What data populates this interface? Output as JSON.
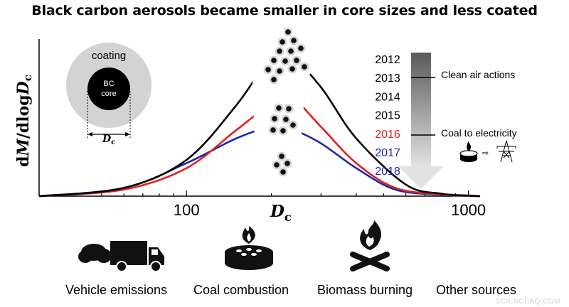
{
  "title": "Black carbon aerosols became smaller in core sizes and less coated",
  "chart_data": {
    "type": "line",
    "xlabel": "D",
    "xlabel_sub": "c",
    "ylabel_prefix": "d",
    "ylabel_italic": "M",
    "ylabel_mid": "/dlog",
    "ylabel_var": "D",
    "ylabel_sub": "c",
    "x_scale": "log",
    "xlim": [
      30,
      1100
    ],
    "ylim": [
      0,
      1
    ],
    "xticks": [
      100,
      1000
    ],
    "xtick_labels": [
      "100",
      "1000"
    ],
    "series": [
      {
        "name": "2012",
        "color": "#000000",
        "x": [
          30,
          60,
          100,
          150,
          195,
          230,
          300,
          400,
          600,
          800,
          1000,
          1100
        ],
        "y": [
          0.0,
          0.05,
          0.22,
          0.55,
          0.82,
          0.86,
          0.66,
          0.35,
          0.07,
          0.015,
          0.004,
          0.0
        ]
      },
      {
        "name": "2016",
        "color": "#e02020",
        "x": [
          30,
          60,
          100,
          150,
          200,
          238,
          300,
          400,
          550,
          800,
          1100
        ],
        "y": [
          0.0,
          0.04,
          0.17,
          0.4,
          0.56,
          0.59,
          0.42,
          0.2,
          0.05,
          0.01,
          0.0
        ]
      },
      {
        "name": "2017-2018",
        "color": "#1c23b5",
        "x": [
          30,
          60,
          100,
          150,
          200,
          240,
          300,
          400,
          550,
          800,
          1100
        ],
        "y": [
          0.0,
          0.05,
          0.2,
          0.35,
          0.42,
          0.4,
          0.32,
          0.17,
          0.04,
          0.008,
          0.0
        ]
      }
    ],
    "years": [
      {
        "label": "2012",
        "color": "#000000"
      },
      {
        "label": "2013",
        "color": "#000000"
      },
      {
        "label": "2014",
        "color": "#000000"
      },
      {
        "label": "2015",
        "color": "#000000"
      },
      {
        "label": "2016",
        "color": "#e02020"
      },
      {
        "label": "2017",
        "color": "#1c23b5"
      },
      {
        "label": "2018",
        "color": "#1c23b5"
      }
    ],
    "annotations": [
      "Clean air actions",
      "Coal to electricity"
    ],
    "inset": {
      "coating_label": "coating",
      "core_line1": "BC",
      "core_line2": "core",
      "dim_label": "D",
      "dim_sub": "c"
    }
  },
  "sources": [
    "Vehicle emissions",
    "Coal combustion",
    "Biomass burning",
    "Other sources"
  ],
  "watermark": "SCIENCEAQ.COM"
}
